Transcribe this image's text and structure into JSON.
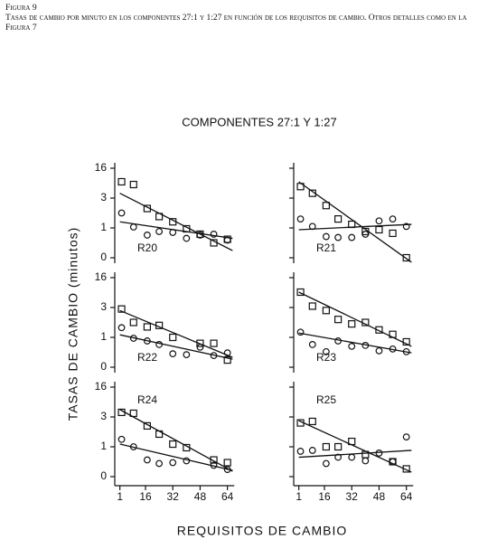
{
  "caption": {
    "figure": "Figura 9",
    "text": "Tasas de cambio por minuto en los componentes 27:1 y 1:27 en función de los requisitos de cambio. Otros detalles como en la Figura 7"
  },
  "chart_data": {
    "type": "scatter",
    "title": "COMPONENTES 27:1 Y 1:27",
    "xlabel": "REQUISITOS DE CAMBIO",
    "ylabel": "TASAS DE CAMBIO (minutos)",
    "xlim": [
      -2,
      68
    ],
    "xticks": [
      1,
      16,
      32,
      48,
      64
    ],
    "ylim": [
      0,
      16
    ],
    "yticks": [
      0,
      1,
      3,
      16
    ],
    "x": [
      2,
      9,
      17,
      24,
      32,
      40,
      48,
      56,
      64
    ],
    "fit_x": [
      1,
      67
    ],
    "panels": [
      {
        "label": "R20",
        "series": [
          {
            "marker": "square",
            "values": [
              10.1,
              8.9,
              2.3,
              1.76,
              1.41,
              0.97,
              0.79,
              0.5,
              0.62
            ],
            "fit": [
              5.1,
              0.24
            ]
          },
          {
            "marker": "circle",
            "values": [
              2.0,
              1.06,
              0.76,
              0.88,
              0.85,
              0.65,
              0.76,
              0.79,
              0.59
            ],
            "fit": [
              1.41,
              0.65
            ]
          }
        ]
      },
      {
        "label": "R21",
        "series": [
          {
            "marker": "square",
            "values": [
              8.0,
              5.1,
              2.5,
              1.6,
              1.24,
              0.88,
              0.94,
              0.82,
              0.0
            ],
            "fit": [
              10.1,
              -0.15
            ]
          },
          {
            "marker": "circle",
            "values": [
              1.6,
              1.1,
              0.71,
              0.68,
              0.68,
              0.79,
              1.47,
              1.6,
              1.1
            ],
            "fit": [
              0.94,
              1.24
            ]
          }
        ]
      },
      {
        "label": "R22",
        "series": [
          {
            "marker": "square",
            "values": [
              2.9,
              2.0,
              1.7,
              1.8,
              1.0,
              null,
              0.8,
              0.8,
              0.24
            ],
            "fit": [
              2.8,
              0.33
            ]
          },
          {
            "marker": "circle",
            "values": [
              1.65,
              0.97,
              0.88,
              0.76,
              0.45,
              0.42,
              0.67,
              0.39,
              0.48
            ],
            "fit": [
              1.17,
              0.27
            ]
          }
        ]
      },
      {
        "label": "R23",
        "series": [
          {
            "marker": "square",
            "values": [
              9.7,
              3.6,
              2.8,
              2.2,
              1.9,
              2.0,
              1.5,
              1.2,
              0.85
            ],
            "fit": [
              9.7,
              0.7
            ]
          },
          {
            "marker": "circle",
            "values": [
              1.35,
              0.76,
              0.52,
              0.88,
              0.7,
              0.73,
              0.55,
              0.61,
              0.52
            ],
            "fit": [
              1.29,
              0.48
            ]
          }
        ]
      },
      {
        "label": "R24",
        "series": [
          {
            "marker": "square",
            "values": [
              5.0,
              4.6,
              2.4,
              1.85,
              1.18,
              0.97,
              null,
              0.56,
              0.47
            ],
            "fit": [
              6.2,
              0.18
            ]
          },
          {
            "marker": "circle",
            "values": [
              1.5,
              1.0,
              0.56,
              0.44,
              0.47,
              0.53,
              null,
              0.38,
              0.24
            ],
            "fit": [
              1.18,
              0.21
            ]
          }
        ]
      },
      {
        "label": "R25",
        "series": [
          {
            "marker": "square",
            "values": [
              2.6,
              2.7,
              1.0,
              1.0,
              1.36,
              0.74,
              null,
              0.5,
              0.26
            ],
            "fit": [
              2.75,
              0.15
            ]
          },
          {
            "marker": "circle",
            "values": [
              0.85,
              0.88,
              0.44,
              0.65,
              0.65,
              0.53,
              0.79,
              0.5,
              1.66
            ],
            "fit": [
              0.65,
              0.88
            ]
          }
        ]
      }
    ]
  }
}
